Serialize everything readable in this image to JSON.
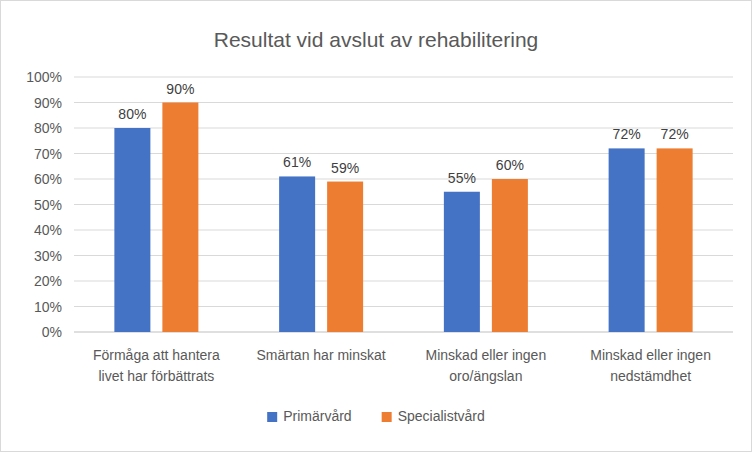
{
  "chart_data": {
    "type": "bar",
    "title": "Resultat vid avslut av rehabilitering",
    "categories": [
      "Förmåga att hantera livet har förbättrats",
      "Smärtan har minskat",
      "Minskad eller ingen oro/ängslan",
      "Minskad eller ingen nedstämdhet"
    ],
    "series": [
      {
        "name": "Primärvård",
        "color": "#4472c4",
        "values": [
          80,
          61,
          55,
          72
        ],
        "value_labels": [
          "80%",
          "61%",
          "55%",
          "72%"
        ]
      },
      {
        "name": "Specialistvård",
        "color": "#ed7d31",
        "values": [
          90,
          59,
          60,
          72
        ],
        "value_labels": [
          "90%",
          "59%",
          "60%",
          "72%"
        ]
      }
    ],
    "ylim": [
      0,
      100
    ],
    "yticks": [
      {
        "value": 0,
        "label": "0%"
      },
      {
        "value": 10,
        "label": "10%"
      },
      {
        "value": 20,
        "label": "20%"
      },
      {
        "value": 30,
        "label": "30%"
      },
      {
        "value": 40,
        "label": "40%"
      },
      {
        "value": 50,
        "label": "50%"
      },
      {
        "value": 60,
        "label": "60%"
      },
      {
        "value": 70,
        "label": "70%"
      },
      {
        "value": 80,
        "label": "80%"
      },
      {
        "value": 90,
        "label": "90%"
      },
      {
        "value": 100,
        "label": "100%"
      }
    ],
    "grid": true,
    "legend": "bottom",
    "data_labels": true
  }
}
